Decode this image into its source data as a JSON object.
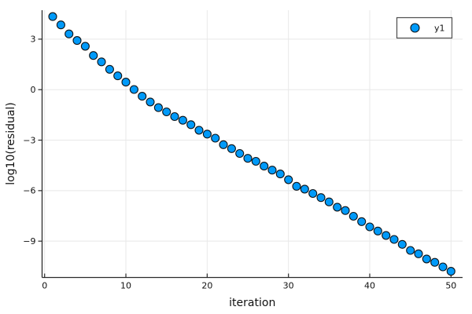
{
  "figure": {
    "background": "#ffffff"
  },
  "chart_data": {
    "type": "scatter",
    "title": "",
    "xlabel": "iteration",
    "ylabel": "log10(residual)",
    "x": [
      1,
      2,
      3,
      4,
      5,
      6,
      7,
      8,
      9,
      10,
      11,
      12,
      13,
      14,
      15,
      16,
      17,
      18,
      19,
      20,
      21,
      22,
      23,
      24,
      25,
      26,
      27,
      28,
      29,
      30,
      31,
      32,
      33,
      34,
      35,
      36,
      37,
      38,
      39,
      40,
      41,
      42,
      43,
      44,
      45,
      46,
      47,
      48,
      49,
      50
    ],
    "y": [
      4.34,
      3.85,
      3.31,
      2.92,
      2.58,
      2.03,
      1.65,
      1.21,
      0.82,
      0.45,
      0.01,
      -0.39,
      -0.73,
      -1.07,
      -1.32,
      -1.6,
      -1.82,
      -2.08,
      -2.41,
      -2.64,
      -2.88,
      -3.27,
      -3.5,
      -3.79,
      -4.08,
      -4.26,
      -4.54,
      -4.78,
      -5.01,
      -5.35,
      -5.74,
      -5.91,
      -6.17,
      -6.41,
      -6.67,
      -6.98,
      -7.18,
      -7.52,
      -7.84,
      -8.15,
      -8.4,
      -8.66,
      -8.9,
      -9.19,
      -9.55,
      -9.75,
      -10.06,
      -10.26,
      -10.53,
      -10.79
    ],
    "xticks": [
      0,
      10,
      20,
      30,
      40,
      50
    ],
    "yticks": [
      3,
      0,
      -3,
      -6,
      -9
    ],
    "xlim": [
      -0.31,
      51.42
    ],
    "ylim": [
      -11.16,
      4.72
    ],
    "grid": true,
    "legend": {
      "position": "top-right",
      "entries": [
        "y1"
      ]
    },
    "colors": {
      "marker_fill": "#009af9",
      "marker_stroke": "#000000",
      "grid": "#e8e8e8",
      "axis": "#2b2b2b",
      "tick_text": "#111111",
      "legend_border": "#4d4d4d",
      "legend_bg": "#ffffff"
    },
    "marker": {
      "shape": "circle",
      "radius": 5,
      "stroke_width": 1.1
    }
  }
}
